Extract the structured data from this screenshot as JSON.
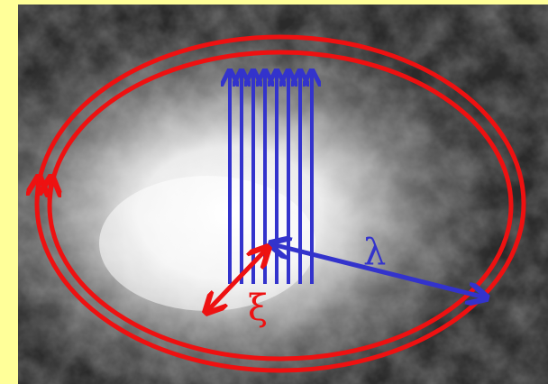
{
  "labels": {
    "lambda": "λ",
    "xi": "ξ"
  }
}
